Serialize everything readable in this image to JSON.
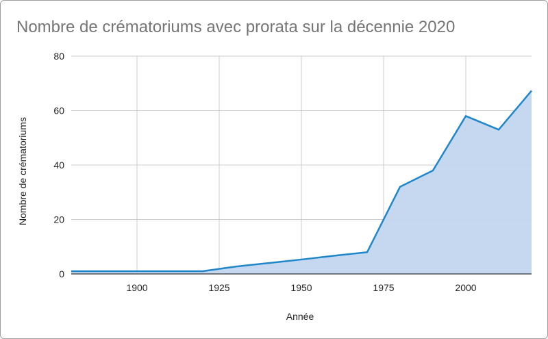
{
  "chart_data": {
    "type": "area",
    "title": "Nombre de crématoriums avec prorata sur la décennie 2020",
    "xlabel": "Année",
    "ylabel": "Nombre de crématoriums",
    "xlim": [
      1880,
      2020
    ],
    "ylim": [
      0,
      80
    ],
    "xticks": [
      1900,
      1925,
      1950,
      1975,
      2000
    ],
    "yticks": [
      0,
      20,
      40,
      60,
      80
    ],
    "grid": true,
    "series": [
      {
        "x": [
          1880,
          1890,
          1900,
          1910,
          1920,
          1930,
          1940,
          1950,
          1960,
          1970,
          1980,
          1990,
          2000,
          2010,
          2020
        ],
        "values": [
          1,
          1,
          1,
          1,
          1,
          2.7,
          4,
          5.3,
          6.7,
          8,
          32,
          38,
          58,
          53,
          67.3
        ]
      }
    ],
    "colors": {
      "line": "#1f86c9",
      "fill": "#c3d6ee",
      "grid": "#cccccc",
      "text": "#222222",
      "title": "#757575"
    }
  }
}
